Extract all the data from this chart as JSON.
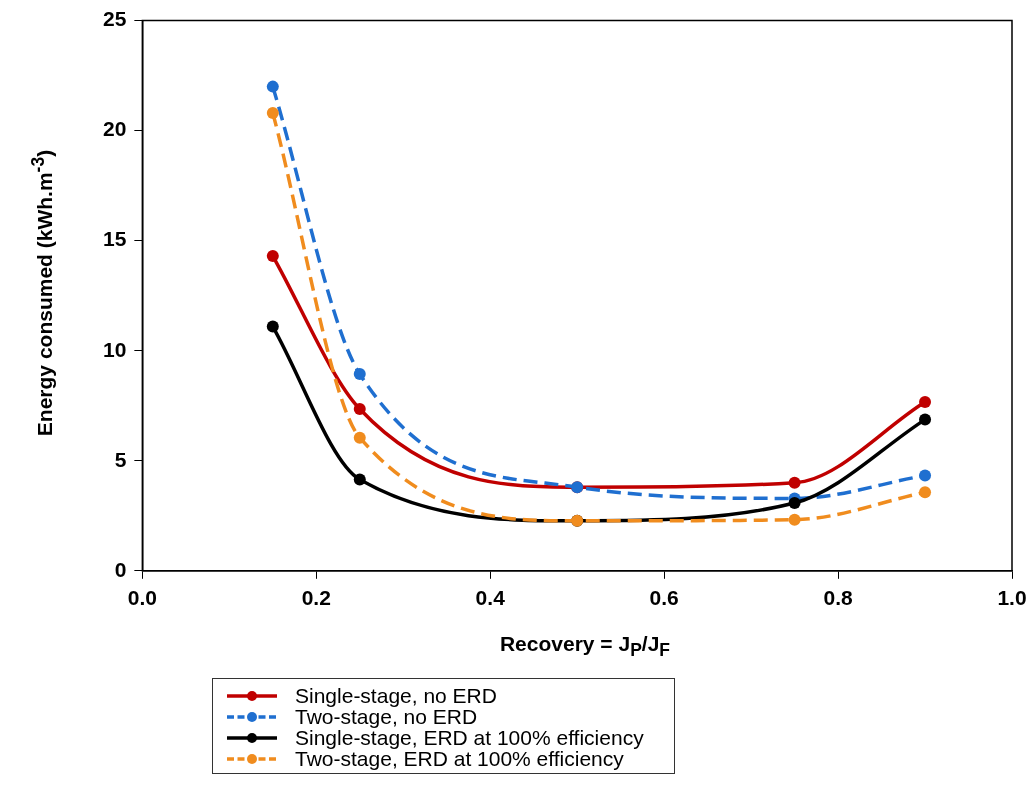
{
  "chart_data": {
    "type": "line",
    "xlabel": "Recovery = J$_{P}$/J$_{F}$",
    "ylabel": "Energy consumed (kWh.m$^{-3}$)",
    "x": [
      0.15,
      0.25,
      0.5,
      0.75,
      0.9
    ],
    "xlim": [
      0,
      1
    ],
    "xticks": [
      {
        "value": 0,
        "label": "0.0"
      },
      0.2,
      0.4,
      0.6,
      0.8,
      {
        "value": 1,
        "label": "1.0"
      }
    ],
    "ylim": [
      0,
      25
    ],
    "yticks": [
      0,
      5,
      10,
      15,
      20,
      25
    ],
    "grid": false,
    "legend": "bottom",
    "marker": "circle",
    "series": [
      {
        "name": "Single-stage, no ERD",
        "color": "#c00000",
        "line_style": "solid",
        "values": [
          14.3,
          7.35,
          3.8,
          4.0,
          7.67
        ]
      },
      {
        "name": "Two-stage, no ERD",
        "color": "#1f6fd0",
        "line_style": "dashed",
        "values": [
          22.0,
          8.94,
          3.8,
          3.29,
          4.33
        ]
      },
      {
        "name": "Single-stage, ERD at 100% efficiency",
        "color": "#000000",
        "line_style": "solid",
        "values": [
          11.1,
          4.15,
          2.27,
          3.08,
          6.87
        ]
      },
      {
        "name": "Two-stage, ERD at 100% efficiency",
        "color": "#f08c1e",
        "line_style": "dashed",
        "values": [
          20.8,
          6.05,
          2.27,
          2.32,
          3.57
        ]
      }
    ]
  }
}
